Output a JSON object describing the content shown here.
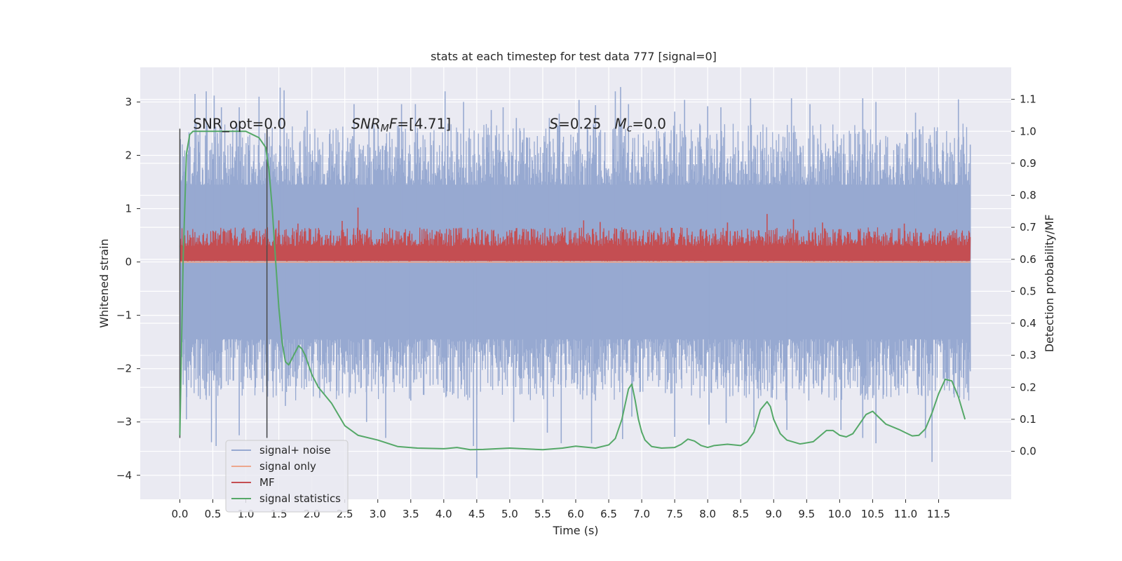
{
  "chart_data": {
    "type": "line",
    "title": "stats at each timestep for test data 777 [signal=0]",
    "xlabel": "Time (s)",
    "ylabel": "Whitened strain",
    "y2label": "Detection probability/MF",
    "xlim": [
      -0.6,
      12.6
    ],
    "ylim": [
      -4.45,
      3.65
    ],
    "y2lim": [
      -0.15,
      1.2
    ],
    "xticks": [
      0.0,
      0.5,
      1.0,
      1.5,
      2.0,
      2.5,
      3.0,
      3.5,
      4.0,
      4.5,
      5.0,
      5.5,
      6.0,
      6.5,
      7.0,
      7.5,
      8.0,
      8.5,
      9.0,
      9.5,
      10.0,
      10.5,
      11.0,
      11.5
    ],
    "xtick_labels": [
      "0.0",
      "0.5",
      "1.0",
      "1.5",
      "2.0",
      "2.5",
      "3.0",
      "3.5",
      "4.0",
      "4.5",
      "5.0",
      "5.5",
      "6.0",
      "6.5",
      "7.0",
      "7.5",
      "8.0",
      "8.5",
      "9.0",
      "9.5",
      "10.0",
      "10.5",
      "11.0",
      "11.5"
    ],
    "yticks": [
      -4,
      -3,
      -2,
      -1,
      0,
      1,
      2,
      3
    ],
    "ytick_labels": [
      "−4",
      "−3",
      "−2",
      "−1",
      "0",
      "1",
      "2",
      "3"
    ],
    "y2ticks": [
      0.0,
      0.1,
      0.2,
      0.3,
      0.4,
      0.5,
      0.6,
      0.7,
      0.8,
      0.9,
      1.0,
      1.1
    ],
    "y2tick_labels": [
      "0.0",
      "0.1",
      "0.2",
      "0.3",
      "0.4",
      "0.5",
      "0.6",
      "0.7",
      "0.8",
      "0.9",
      "1.0",
      "1.1"
    ],
    "grid": true,
    "legend_position": "lower-left",
    "vlines": [
      {
        "x": 0.0,
        "ymin": -3.3,
        "ymax": 2.5
      },
      {
        "x": 1.32,
        "ymin": -3.3,
        "ymax": 2.5
      }
    ],
    "annotations": [
      {
        "text": "SNR_opt=0.0",
        "x": 0.2,
        "y": 2.5
      },
      {
        "text": "SNR_MF=[4.71]",
        "x": 2.6,
        "y": 2.5
      },
      {
        "text": "S=0.25   M_c=0.0",
        "x": 5.6,
        "y": 2.5
      }
    ],
    "series": [
      {
        "name": "signal+ noise",
        "axis": "left",
        "color": "#97a9d1",
        "kind": "noise",
        "x_range": [
          0.0,
          11.98
        ],
        "core_range": [
          -1.45,
          1.45
        ],
        "typical_peak": [
          1.4,
          2.6
        ],
        "typical_trough": [
          -2.6,
          -1.4
        ],
        "peaks": [
          [
            0.23,
            3.15
          ],
          [
            0.4,
            3.2
          ],
          [
            0.52,
            3.12
          ],
          [
            0.63,
            2.9
          ],
          [
            0.9,
            2.9
          ],
          [
            1.2,
            3.1
          ],
          [
            1.52,
            3.27
          ],
          [
            1.58,
            3.22
          ],
          [
            1.93,
            2.84
          ],
          [
            2.64,
            2.96
          ],
          [
            3.36,
            2.96
          ],
          [
            3.57,
            2.96
          ],
          [
            4.02,
            3.2
          ],
          [
            4.3,
            3.0
          ],
          [
            4.72,
            2.85
          ],
          [
            4.9,
            2.9
          ],
          [
            5.1,
            2.7
          ],
          [
            5.6,
            2.7
          ],
          [
            5.75,
            2.78
          ],
          [
            6.05,
            3.04
          ],
          [
            6.3,
            2.94
          ],
          [
            6.6,
            3.2
          ],
          [
            6.68,
            3.28
          ],
          [
            6.8,
            2.96
          ],
          [
            7.5,
            2.82
          ],
          [
            7.65,
            3.04
          ],
          [
            8.0,
            2.92
          ],
          [
            8.2,
            2.9
          ],
          [
            8.65,
            3.07
          ],
          [
            9.27,
            3.07
          ],
          [
            9.55,
            2.96
          ],
          [
            10.35,
            3.07
          ],
          [
            10.55,
            3.0
          ],
          [
            11.15,
            2.8
          ],
          [
            11.8,
            3.05
          ],
          [
            11.98,
            2.2
          ]
        ],
        "troughs": [
          [
            0.1,
            -2.95
          ],
          [
            0.48,
            -3.38
          ],
          [
            0.55,
            -3.45
          ],
          [
            0.9,
            -3.25
          ],
          [
            1.32,
            -3.3
          ],
          [
            1.6,
            -2.7
          ],
          [
            2.12,
            -2.55
          ],
          [
            2.83,
            -3.0
          ],
          [
            3.12,
            -3.3
          ],
          [
            3.5,
            -2.6
          ],
          [
            4.45,
            -3.45
          ],
          [
            4.5,
            -4.05
          ],
          [
            5.06,
            -3.0
          ],
          [
            5.57,
            -3.2
          ],
          [
            5.78,
            -3.4
          ],
          [
            6.24,
            -3.4
          ],
          [
            6.3,
            -2.6
          ],
          [
            6.71,
            -3.32
          ],
          [
            6.85,
            -2.9
          ],
          [
            7.5,
            -3.28
          ],
          [
            8.02,
            -3.05
          ],
          [
            8.28,
            -3.02
          ],
          [
            8.7,
            -3.1
          ],
          [
            9.2,
            -3.15
          ],
          [
            10.02,
            -3.15
          ],
          [
            10.35,
            -3.3
          ],
          [
            10.55,
            -3.4
          ],
          [
            11.3,
            -3.3
          ],
          [
            11.4,
            -3.75
          ],
          [
            11.98,
            -2.05
          ]
        ]
      },
      {
        "name": "signal only",
        "axis": "left",
        "color": "#eda78d",
        "kind": "flat",
        "x_range": [
          0.0,
          11.98
        ],
        "value": 0.0
      },
      {
        "name": "MF",
        "axis": "left",
        "color": "#c44e52",
        "kind": "mf",
        "x_range": [
          0.0,
          11.98
        ],
        "base": 0.0,
        "typical_top": [
          0.3,
          0.65
        ],
        "peaks": [
          [
            1.5,
            0.78
          ],
          [
            1.79,
            0.72
          ],
          [
            2.46,
            0.77
          ],
          [
            2.7,
            1.02
          ],
          [
            3.7,
            0.62
          ],
          [
            6.12,
            0.78
          ],
          [
            6.37,
            0.75
          ],
          [
            7.9,
            0.62
          ],
          [
            8.3,
            0.74
          ],
          [
            8.9,
            0.9
          ],
          [
            9.3,
            0.8
          ],
          [
            9.74,
            0.74
          ],
          [
            10.98,
            0.72
          ]
        ]
      },
      {
        "name": "signal statistics",
        "axis": "right",
        "color": "#55a868",
        "kind": "line",
        "x": [
          0.0,
          0.05,
          0.1,
          0.15,
          0.2,
          0.3,
          0.5,
          0.8,
          1.0,
          1.1,
          1.2,
          1.3,
          1.35,
          1.4,
          1.45,
          1.5,
          1.55,
          1.6,
          1.65,
          1.7,
          1.75,
          1.8,
          1.85,
          1.9,
          2.0,
          2.1,
          2.3,
          2.5,
          2.7,
          3.0,
          3.3,
          3.6,
          4.0,
          4.2,
          4.4,
          4.6,
          5.0,
          5.5,
          5.8,
          6.0,
          6.3,
          6.5,
          6.6,
          6.7,
          6.8,
          6.85,
          6.9,
          6.95,
          7.0,
          7.05,
          7.15,
          7.3,
          7.5,
          7.6,
          7.7,
          7.8,
          7.9,
          8.0,
          8.1,
          8.3,
          8.5,
          8.6,
          8.7,
          8.8,
          8.9,
          8.95,
          9.0,
          9.1,
          9.2,
          9.4,
          9.6,
          9.8,
          9.9,
          10.0,
          10.1,
          10.2,
          10.3,
          10.4,
          10.5,
          10.6,
          10.7,
          10.9,
          11.0,
          11.1,
          11.2,
          11.3,
          11.4,
          11.5,
          11.6,
          11.7,
          11.8,
          11.9
        ],
        "values": [
          0.05,
          0.6,
          0.93,
          0.99,
          1.0,
          1.0,
          1.0,
          1.0,
          1.0,
          0.99,
          0.98,
          0.95,
          0.88,
          0.76,
          0.6,
          0.45,
          0.34,
          0.28,
          0.27,
          0.29,
          0.31,
          0.33,
          0.32,
          0.3,
          0.24,
          0.2,
          0.15,
          0.08,
          0.05,
          0.035,
          0.015,
          0.01,
          0.008,
          0.012,
          0.005,
          0.006,
          0.01,
          0.005,
          0.01,
          0.016,
          0.01,
          0.02,
          0.04,
          0.1,
          0.195,
          0.21,
          0.16,
          0.1,
          0.06,
          0.035,
          0.015,
          0.01,
          0.012,
          0.022,
          0.038,
          0.032,
          0.018,
          0.012,
          0.018,
          0.022,
          0.018,
          0.03,
          0.06,
          0.13,
          0.155,
          0.14,
          0.1,
          0.055,
          0.035,
          0.023,
          0.03,
          0.065,
          0.065,
          0.05,
          0.045,
          0.055,
          0.085,
          0.115,
          0.125,
          0.105,
          0.085,
          0.068,
          0.058,
          0.048,
          0.05,
          0.07,
          0.12,
          0.18,
          0.225,
          0.22,
          0.17,
          0.1
        ]
      }
    ]
  }
}
